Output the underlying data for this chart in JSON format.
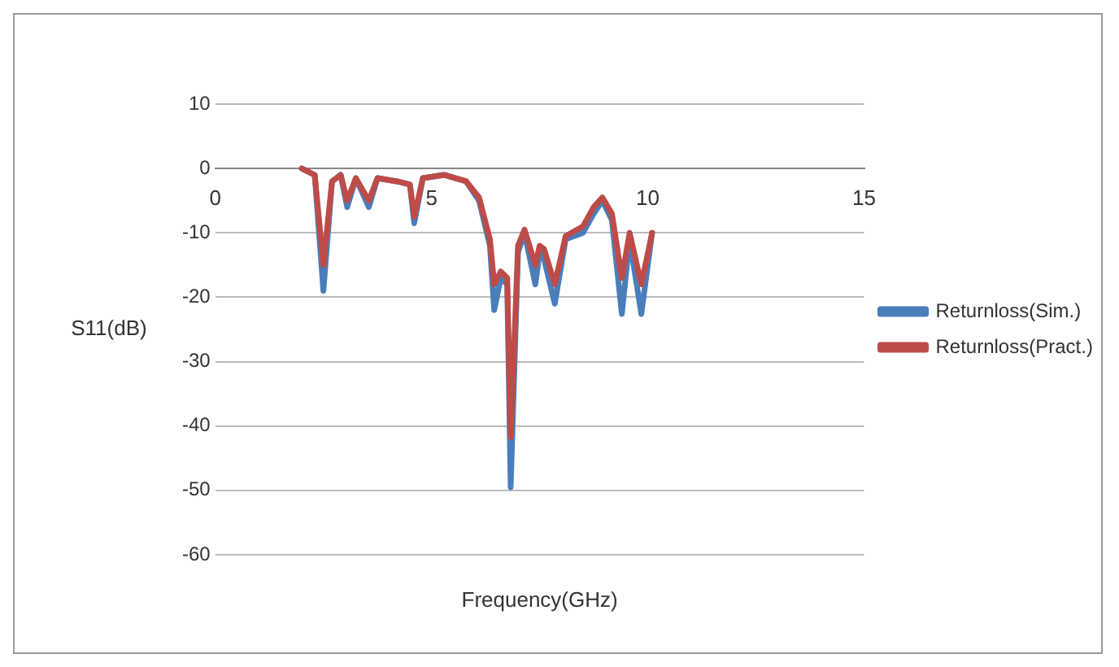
{
  "chart_data": {
    "type": "line",
    "xlabel": "Frequency(GHz)",
    "ylabel": "S11(dB)",
    "xlim": [
      0,
      15
    ],
    "xticks": [
      0,
      5,
      10,
      15
    ],
    "ylim": [
      -60,
      10
    ],
    "yticks": [
      -60,
      -50,
      -40,
      -30,
      -20,
      -10,
      0,
      10
    ],
    "grid": "y",
    "legend": "right",
    "marker": "none",
    "line_style": "solid",
    "x": [
      2.0,
      2.3,
      2.5,
      2.7,
      2.9,
      3.05,
      3.25,
      3.55,
      3.75,
      4.2,
      4.5,
      4.6,
      4.8,
      5.3,
      5.8,
      6.1,
      6.35,
      6.45,
      6.6,
      6.75,
      6.83,
      7.0,
      7.15,
      7.4,
      7.5,
      7.6,
      7.85,
      8.1,
      8.5,
      8.75,
      8.95,
      9.17,
      9.4,
      9.58,
      9.85,
      10.1
    ],
    "series": [
      {
        "name": "Returnloss(Sim.)",
        "color": "#4a7ebb",
        "values": [
          0,
          -1,
          -19,
          -2,
          -1,
          -6,
          -1.5,
          -6,
          -1.5,
          -2,
          -2.5,
          -8.5,
          -1.5,
          -1,
          -2,
          -5,
          -12,
          -22,
          -17,
          -18,
          -49.5,
          -13,
          -10,
          -18,
          -13,
          -14,
          -21,
          -11,
          -10,
          -7,
          -5,
          -8,
          -22.6,
          -11,
          -22.6,
          -10
        ]
      },
      {
        "name": "Returnloss(Pract.)",
        "color": "#be4b48",
        "values": [
          0,
          -1,
          -15,
          -2,
          -1,
          -5,
          -1.5,
          -5,
          -1.5,
          -2,
          -2.5,
          -7.5,
          -1.5,
          -1,
          -2,
          -4.5,
          -11,
          -18,
          -16,
          -17,
          -41.7,
          -12,
          -9.5,
          -15,
          -12,
          -12.5,
          -18,
          -10.5,
          -9,
          -6,
          -4.5,
          -7,
          -17,
          -10,
          -18,
          -10
        ]
      }
    ]
  }
}
